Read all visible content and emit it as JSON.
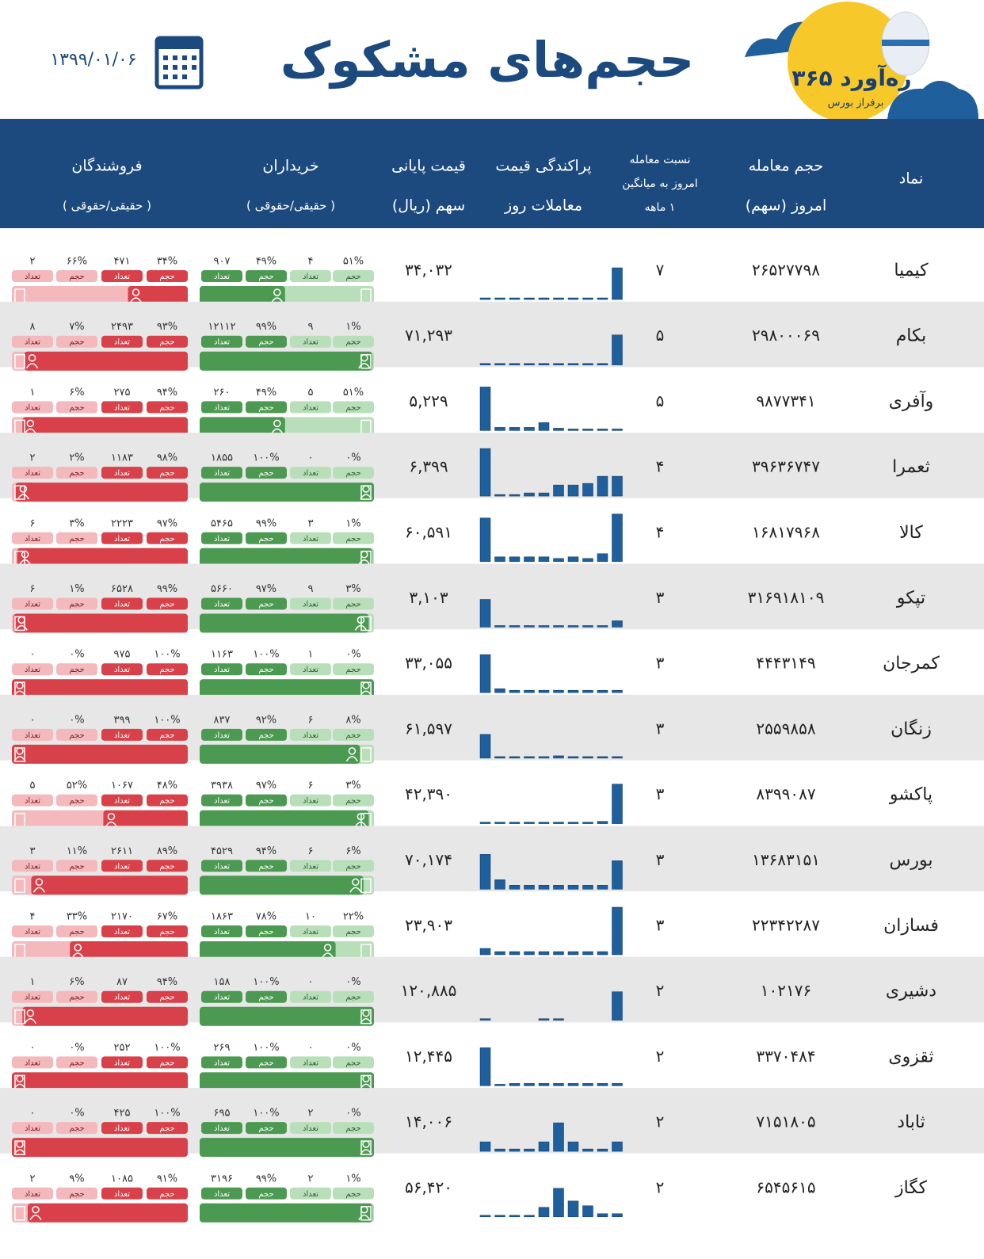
{
  "header": {
    "title": "حجم‌های مشکوک",
    "date": "۱۳۹۹/۰۱/۰۶",
    "logo": {
      "name": "ره‌آورد ۳۶۵",
      "tagline": "برفراز بورس"
    }
  },
  "table": {
    "columns": [
      [
        "نماد"
      ],
      [
        "حجم معامله",
        "امروز (سهم)"
      ],
      [
        "نسبت معامله",
        "امروز به میانگین",
        "۱ ماهه"
      ],
      [
        "پراکندگی قیمت",
        "معاملات روز"
      ],
      [
        "قیمت پایانی",
        "سهم (ریال)"
      ],
      [
        "خریداران",
        "( حقیقی/حقوقی )"
      ],
      [
        "فروشندگان",
        "( حقیقی/حقوقی )"
      ]
    ],
    "pill_labels": {
      "volume": "حجم",
      "count": "تعداد"
    },
    "rows": [
      {
        "symbol": "کیمیا",
        "volume": "۲۶۵۲۷۷۹۸",
        "ratio": "۷",
        "price": "۳۴,۰۳۲",
        "price_dispersion": [
          2,
          2,
          2,
          2,
          2,
          2,
          2,
          2,
          2,
          40
        ],
        "buyers": {
          "legal_volume": "۵۱%",
          "legal_count": "۴",
          "real_volume": "۴۹%",
          "real_count": "۹۰۷"
        },
        "sellers": {
          "real_volume": "۳۴%",
          "real_count": "۴۷۱",
          "legal_volume": "۶۶%",
          "legal_count": "۲"
        }
      },
      {
        "symbol": "بکام",
        "volume": "۲۹۸۰۰۰۶۹",
        "ratio": "۵",
        "price": "۷۱,۲۹۳",
        "price_dispersion": [
          2,
          2,
          2,
          2,
          2,
          2,
          2,
          2,
          2,
          38
        ],
        "buyers": {
          "legal_volume": "۱%",
          "legal_count": "۹",
          "real_volume": "۹۹%",
          "real_count": "۱۲۱۱۲"
        },
        "sellers": {
          "real_volume": "۹۳%",
          "real_count": "۲۴۹۳",
          "legal_volume": "۷%",
          "legal_count": "۸"
        }
      },
      {
        "symbol": "وآفری",
        "volume": "۹۸۷۷۳۴۱",
        "ratio": "۵",
        "price": "۵,۲۲۹",
        "price_dispersion": [
          55,
          4,
          4,
          4,
          10,
          3,
          2,
          2,
          2,
          2
        ],
        "buyers": {
          "legal_volume": "۵۱%",
          "legal_count": "۵",
          "real_volume": "۴۹%",
          "real_count": "۲۶۰"
        },
        "sellers": {
          "real_volume": "۹۴%",
          "real_count": "۲۷۵",
          "legal_volume": "۶%",
          "legal_count": "۱"
        }
      },
      {
        "symbol": "ثعمرا",
        "volume": "۳۹۶۳۶۷۴۷",
        "ratio": "۴",
        "price": "۶,۳۹۹",
        "price_dispersion": [
          60,
          2,
          2,
          4,
          4,
          14,
          14,
          16,
          25,
          25
        ],
        "buyers": {
          "legal_volume": "۰%",
          "legal_count": "۰",
          "real_volume": "۱۰۰%",
          "real_count": "۱۸۵۵"
        },
        "sellers": {
          "real_volume": "۹۸%",
          "real_count": "۱۱۸۳",
          "legal_volume": "۲%",
          "legal_count": "۲"
        }
      },
      {
        "symbol": "کالا",
        "volume": "۱۶۸۱۷۹۶۸",
        "ratio": "۴",
        "price": "۶۰,۵۹۱",
        "price_dispersion": [
          55,
          6,
          6,
          6,
          6,
          4,
          6,
          4,
          10,
          60
        ],
        "buyers": {
          "legal_volume": "۱%",
          "legal_count": "۳",
          "real_volume": "۹۹%",
          "real_count": "۵۴۶۵"
        },
        "sellers": {
          "real_volume": "۹۷%",
          "real_count": "۲۲۲۳",
          "legal_volume": "۳%",
          "legal_count": "۶"
        }
      },
      {
        "symbol": "تپکو",
        "volume": "۳۱۶۹۱۸۱۰۹",
        "ratio": "۳",
        "price": "۳,۱۰۳",
        "price_dispersion": [
          35,
          2,
          2,
          2,
          2,
          2,
          2,
          2,
          2,
          8
        ],
        "buyers": {
          "legal_volume": "۳%",
          "legal_count": "۹",
          "real_volume": "۹۷%",
          "real_count": "۵۶۶۰"
        },
        "sellers": {
          "real_volume": "۹۹%",
          "real_count": "۶۵۲۸",
          "legal_volume": "۱%",
          "legal_count": "۶"
        }
      },
      {
        "symbol": "کمرجان",
        "volume": "۴۴۴۳۱۴۹",
        "ratio": "۳",
        "price": "۳۳,۰۵۵",
        "price_dispersion": [
          48,
          5,
          3,
          3,
          3,
          3,
          3,
          3,
          3,
          3
        ],
        "buyers": {
          "legal_volume": "۰%",
          "legal_count": "۱",
          "real_volume": "۱۰۰%",
          "real_count": "۱۱۶۳"
        },
        "sellers": {
          "real_volume": "۱۰۰%",
          "real_count": "۹۷۵",
          "legal_volume": "۰%",
          "legal_count": "۰"
        }
      },
      {
        "symbol": "زنگان",
        "volume": "۲۵۵۹۸۵۸",
        "ratio": "۳",
        "price": "۶۱,۵۹۷",
        "price_dispersion": [
          30,
          2,
          2,
          2,
          2,
          3,
          2,
          2,
          2,
          2
        ],
        "buyers": {
          "legal_volume": "۸%",
          "legal_count": "۶",
          "real_volume": "۹۲%",
          "real_count": "۸۳۷"
        },
        "sellers": {
          "real_volume": "۱۰۰%",
          "real_count": "۳۹۹",
          "legal_volume": "۰%",
          "legal_count": "۰"
        }
      },
      {
        "symbol": "پاکشو",
        "volume": "۸۳۹۹۰۸۷",
        "ratio": "۳",
        "price": "۴۲,۳۹۰",
        "price_dispersion": [
          2,
          2,
          2,
          2,
          2,
          2,
          2,
          2,
          3,
          50
        ],
        "buyers": {
          "legal_volume": "۳%",
          "legal_count": "۶",
          "real_volume": "۹۷%",
          "real_count": "۳۹۳۸"
        },
        "sellers": {
          "real_volume": "۴۸%",
          "real_count": "۱۰۶۷",
          "legal_volume": "۵۲%",
          "legal_count": "۵"
        }
      },
      {
        "symbol": "بورس",
        "volume": "۱۳۶۸۳۱۵۱",
        "ratio": "۳",
        "price": "۷۰,۱۷۴",
        "price_dispersion": [
          44,
          12,
          5,
          5,
          5,
          5,
          5,
          5,
          5,
          36
        ],
        "buyers": {
          "legal_volume": "۶%",
          "legal_count": "۶",
          "real_volume": "۹۴%",
          "real_count": "۴۵۲۹"
        },
        "sellers": {
          "real_volume": "۸۹%",
          "real_count": "۲۶۱۱",
          "legal_volume": "۱۱%",
          "legal_count": "۳"
        }
      },
      {
        "symbol": "فسازان",
        "volume": "۲۲۳۴۲۲۸۷",
        "ratio": "۳",
        "price": "۲۳,۹۰۳",
        "price_dispersion": [
          8,
          4,
          4,
          4,
          4,
          4,
          4,
          4,
          4,
          60
        ],
        "buyers": {
          "legal_volume": "۲۲%",
          "legal_count": "۱۰",
          "real_volume": "۷۸%",
          "real_count": "۱۸۶۳"
        },
        "sellers": {
          "real_volume": "۶۷%",
          "real_count": "۲۱۷۰",
          "legal_volume": "۳۳%",
          "legal_count": "۴"
        }
      },
      {
        "symbol": "دشیری",
        "volume": "۱۰۲۱۷۶",
        "ratio": "۲",
        "price": "۱۲۰,۸۸۵",
        "price_dispersion": [
          2,
          0,
          0,
          0,
          2,
          2,
          0,
          0,
          0,
          36
        ],
        "buyers": {
          "legal_volume": "۰%",
          "legal_count": "۰",
          "real_volume": "۱۰۰%",
          "real_count": "۱۵۸"
        },
        "sellers": {
          "real_volume": "۹۴%",
          "real_count": "۸۷",
          "legal_volume": "۶%",
          "legal_count": "۱"
        }
      },
      {
        "symbol": "ثقزوی",
        "volume": "۳۳۷۰۴۸۴",
        "ratio": "۲",
        "price": "۱۲,۴۴۵",
        "price_dispersion": [
          48,
          2,
          3,
          3,
          3,
          3,
          3,
          3,
          3,
          3
        ],
        "buyers": {
          "legal_volume": "۰%",
          "legal_count": "۰",
          "real_volume": "۱۰۰%",
          "real_count": "۲۶۹"
        },
        "sellers": {
          "real_volume": "۱۰۰%",
          "real_count": "۲۵۲",
          "legal_volume": "۰%",
          "legal_count": "۰"
        }
      },
      {
        "symbol": "ثاباد",
        "volume": "۷۱۵۱۸۰۵",
        "ratio": "۲",
        "price": "۱۴,۰۰۶",
        "price_dispersion": [
          12,
          3,
          3,
          3,
          12,
          36,
          12,
          3,
          3,
          12
        ],
        "buyers": {
          "legal_volume": "۰%",
          "legal_count": "۲",
          "real_volume": "۱۰۰%",
          "real_count": "۶۹۵"
        },
        "sellers": {
          "real_volume": "۱۰۰%",
          "real_count": "۴۲۵",
          "legal_volume": "۰%",
          "legal_count": "۰"
        }
      },
      {
        "symbol": "کگاز",
        "volume": "۶۵۴۵۶۱۵",
        "ratio": "۲",
        "price": "۵۶,۴۲۰",
        "price_dispersion": [
          2,
          2,
          2,
          2,
          12,
          36,
          20,
          14,
          4,
          4
        ],
        "buyers": {
          "legal_volume": "۱%",
          "legal_count": "۲",
          "real_volume": "۹۹%",
          "real_count": "۳۱۹۶"
        },
        "sellers": {
          "real_volume": "۹۱%",
          "real_count": "۱۰۸۵",
          "legal_volume": "۹%",
          "legal_count": "۲"
        }
      }
    ]
  }
}
